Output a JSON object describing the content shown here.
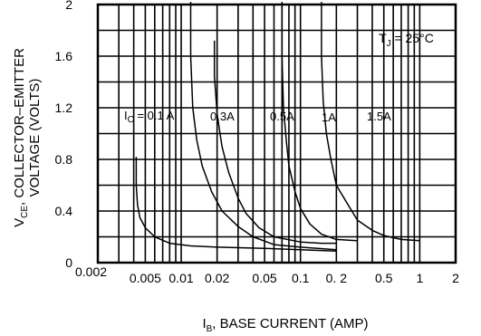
{
  "chart_data": {
    "type": "line",
    "title": "",
    "xlabel_main": "I",
    "xlabel_sub": "B",
    "xlabel_rest": ", BASE CURRENT (AMP)",
    "ylabel_line1_main": "V",
    "ylabel_line1_sub": "CE",
    "ylabel_line1_rest": ", COLLECTOR–EMITTER",
    "ylabel_line2": "VOLTAGE (VOLTS)",
    "x_scale": "log",
    "xlim": [
      0.002,
      2
    ],
    "ylim": [
      0,
      2
    ],
    "grid": true,
    "x_ticks": [
      0.002,
      0.005,
      0.01,
      0.02,
      0.05,
      0.1,
      0.2,
      0.5,
      1,
      2
    ],
    "x_tick_labels": [
      "0.002",
      "0.005",
      "0.01",
      "0.02",
      "0.05",
      "0.1",
      "0. 2",
      "0.5",
      "1",
      "2"
    ],
    "y_ticks": [
      0,
      0.4,
      0.8,
      1.2,
      1.6,
      2
    ],
    "y_tick_labels": [
      "0",
      "0.4",
      "0.8",
      "1.2",
      "1.6",
      "2"
    ],
    "condition_main": "T",
    "condition_sub": "J",
    "condition_rest": " = 25°C",
    "series": [
      {
        "name_main": "I",
        "name_sub": "C",
        "name_rest": " = 0.1 A",
        "x": [
          0.0042,
          0.0042,
          0.0043,
          0.0045,
          0.005,
          0.006,
          0.008,
          0.012,
          0.02,
          0.05,
          0.1,
          0.2
        ],
        "y": [
          0.82,
          0.6,
          0.45,
          0.35,
          0.27,
          0.2,
          0.15,
          0.13,
          0.12,
          0.11,
          0.1,
          0.09
        ]
      },
      {
        "name_main": "0.3A",
        "name_sub": "",
        "name_rest": "",
        "x": [
          0.012,
          0.012,
          0.0125,
          0.0135,
          0.015,
          0.018,
          0.022,
          0.03,
          0.04,
          0.06,
          0.1,
          0.2
        ],
        "y": [
          2.05,
          1.6,
          1.2,
          0.95,
          0.75,
          0.55,
          0.4,
          0.28,
          0.2,
          0.14,
          0.12,
          0.1
        ]
      },
      {
        "name_main": "0.5A",
        "name_sub": "",
        "name_rest": "",
        "x": [
          0.019,
          0.019,
          0.02,
          0.022,
          0.025,
          0.03,
          0.035,
          0.045,
          0.06,
          0.1,
          0.15,
          0.2
        ],
        "y": [
          1.72,
          1.45,
          1.15,
          0.9,
          0.7,
          0.5,
          0.38,
          0.27,
          0.2,
          0.16,
          0.15,
          0.15
        ]
      },
      {
        "name_main": "1A",
        "name_sub": "",
        "name_rest": "",
        "x": [
          0.07,
          0.07,
          0.072,
          0.076,
          0.08,
          0.09,
          0.1,
          0.12,
          0.15,
          0.2,
          0.3
        ],
        "y": [
          2.05,
          1.6,
          1.2,
          0.95,
          0.75,
          0.55,
          0.42,
          0.3,
          0.22,
          0.18,
          0.17
        ]
      },
      {
        "name_main": "1.5A",
        "name_sub": "",
        "name_rest": "",
        "x": [
          0.15,
          0.15,
          0.155,
          0.165,
          0.18,
          0.2,
          0.25,
          0.3,
          0.4,
          0.5,
          0.7,
          1
        ],
        "y": [
          2.05,
          1.6,
          1.25,
          1.0,
          0.8,
          0.6,
          0.45,
          0.33,
          0.25,
          0.21,
          0.18,
          0.17
        ]
      }
    ]
  }
}
